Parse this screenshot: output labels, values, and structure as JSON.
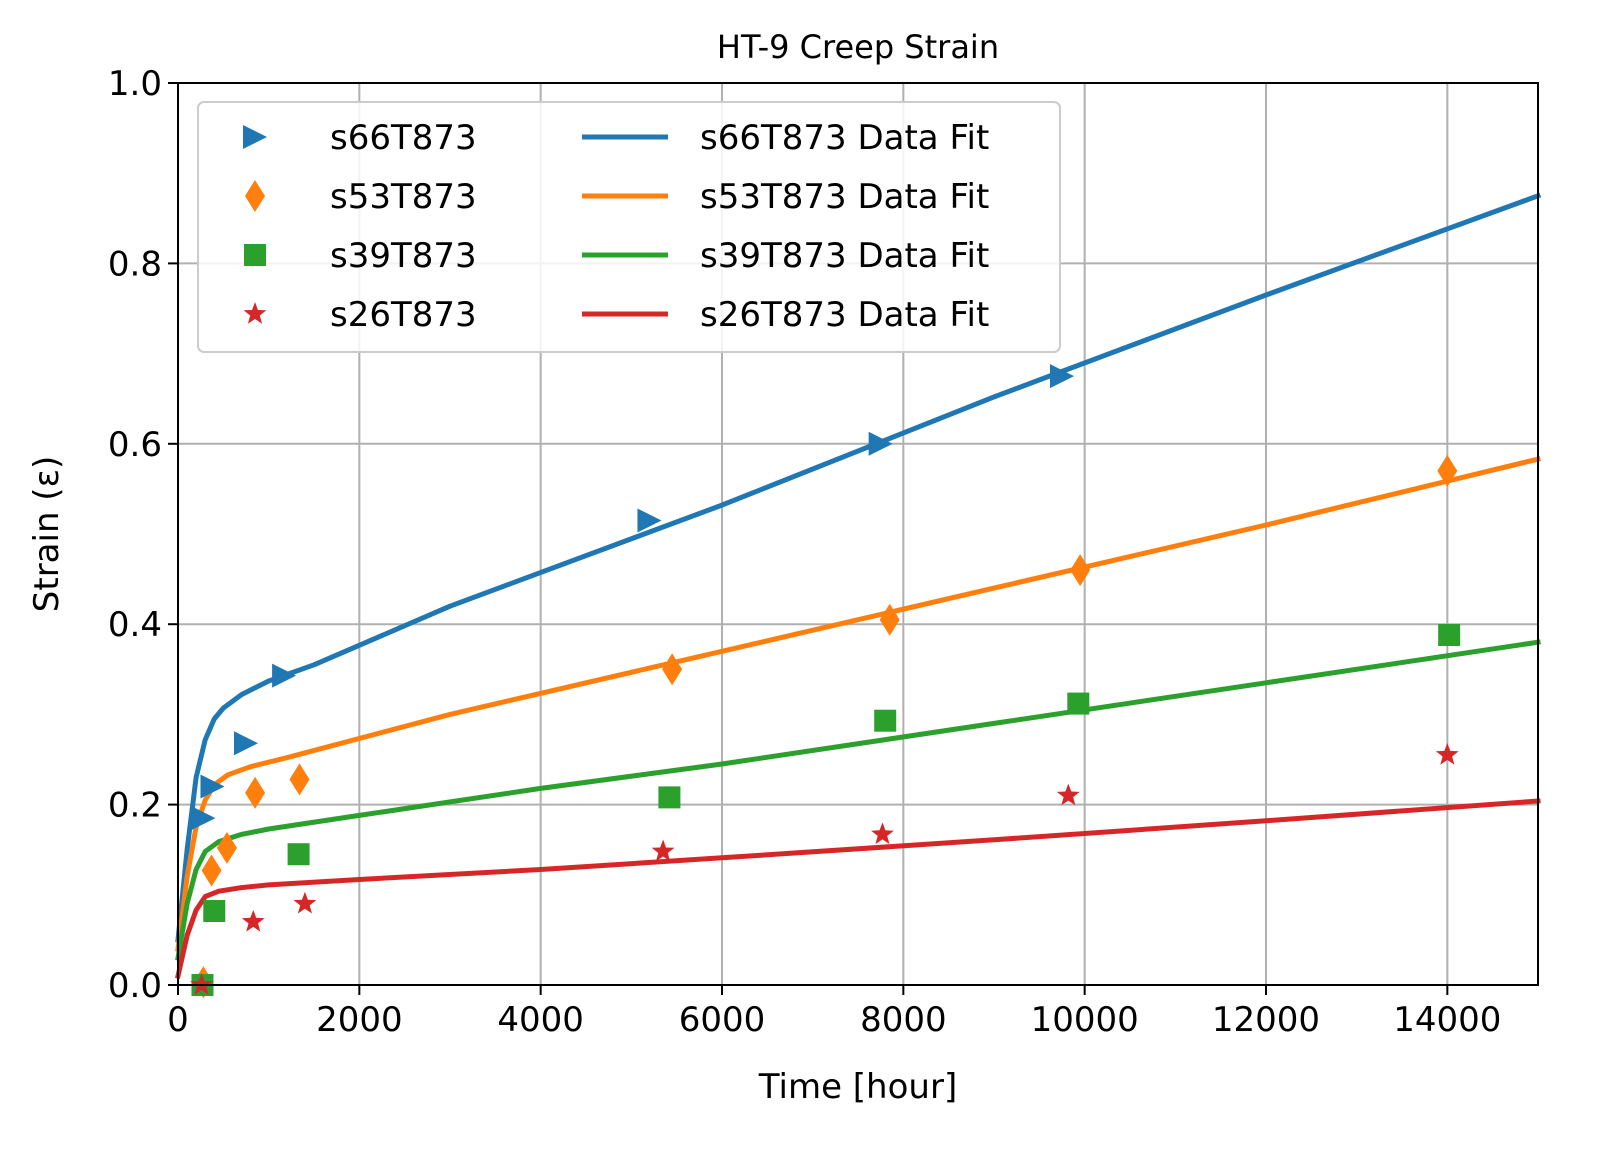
{
  "chart_data": {
    "type": "scatter",
    "title": "HT-9 Creep Strain",
    "xlabel": "Time [hour]",
    "ylabel": "Strain (ε)",
    "xlim": [
      0,
      15000
    ],
    "ylim": [
      0,
      1.0
    ],
    "x_ticks": [
      0,
      2000,
      4000,
      6000,
      8000,
      10000,
      12000,
      14000
    ],
    "y_ticks": [
      0.0,
      0.2,
      0.4,
      0.6,
      0.8,
      1.0
    ],
    "x_tick_labels": [
      "0",
      "2000",
      "4000",
      "6000",
      "8000",
      "10000",
      "12000",
      "14000"
    ],
    "y_tick_labels": [
      "0.0",
      "0.2",
      "0.4",
      "0.6",
      "0.8",
      "1.0"
    ],
    "grid": true,
    "legend_placement": "upper-left",
    "legend_columns": 2,
    "series": [
      {
        "name": "s66T873",
        "kind": "scatter",
        "marker": "triangle-right",
        "color": "#1f77b4",
        "points": [
          [
            280,
            0.185
          ],
          [
            380,
            0.22
          ],
          [
            750,
            0.268
          ],
          [
            1170,
            0.343
          ],
          [
            5200,
            0.515
          ],
          [
            7750,
            0.6
          ],
          [
            9750,
            0.675
          ]
        ]
      },
      {
        "name": "s53T873",
        "kind": "scatter",
        "marker": "thin-diamond",
        "color": "#ff7f0e",
        "points": [
          [
            280,
            0.003
          ],
          [
            370,
            0.127
          ],
          [
            540,
            0.152
          ],
          [
            850,
            0.213
          ],
          [
            1340,
            0.228
          ],
          [
            5450,
            0.35
          ],
          [
            7850,
            0.405
          ],
          [
            9950,
            0.46
          ],
          [
            14000,
            0.57
          ]
        ]
      },
      {
        "name": "s39T873",
        "kind": "scatter",
        "marker": "square",
        "color": "#2ca02c",
        "points": [
          [
            270,
            0.0
          ],
          [
            400,
            0.082
          ],
          [
            1330,
            0.145
          ],
          [
            5420,
            0.208
          ],
          [
            7800,
            0.293
          ],
          [
            9930,
            0.312
          ],
          [
            14020,
            0.388
          ]
        ]
      },
      {
        "name": "s26T873",
        "kind": "scatter",
        "marker": "star",
        "color": "#d62728",
        "points": [
          [
            260,
            0.0
          ],
          [
            830,
            0.07
          ],
          [
            1400,
            0.09
          ],
          [
            5350,
            0.148
          ],
          [
            7770,
            0.167
          ],
          [
            9820,
            0.21
          ],
          [
            14000,
            0.255
          ]
        ]
      },
      {
        "name": "s66T873 Data Fit",
        "kind": "line",
        "color": "#1f77b4",
        "points": [
          [
            0,
            0.05
          ],
          [
            100,
            0.15
          ],
          [
            200,
            0.23
          ],
          [
            300,
            0.272
          ],
          [
            400,
            0.295
          ],
          [
            500,
            0.307
          ],
          [
            700,
            0.322
          ],
          [
            1000,
            0.337
          ],
          [
            1500,
            0.355
          ],
          [
            3000,
            0.42
          ],
          [
            6000,
            0.532
          ],
          [
            9000,
            0.652
          ],
          [
            12000,
            0.765
          ],
          [
            15000,
            0.875
          ]
        ]
      },
      {
        "name": "s53T873 Data Fit",
        "kind": "line",
        "color": "#ff7f0e",
        "points": [
          [
            0,
            0.04
          ],
          [
            100,
            0.12
          ],
          [
            200,
            0.175
          ],
          [
            300,
            0.205
          ],
          [
            400,
            0.222
          ],
          [
            550,
            0.233
          ],
          [
            800,
            0.242
          ],
          [
            1200,
            0.252
          ],
          [
            3000,
            0.3
          ],
          [
            6000,
            0.37
          ],
          [
            9000,
            0.44
          ],
          [
            12000,
            0.51
          ],
          [
            15000,
            0.583
          ]
        ]
      },
      {
        "name": "s39T873 Data Fit",
        "kind": "line",
        "color": "#2ca02c",
        "points": [
          [
            0,
            0.03
          ],
          [
            100,
            0.09
          ],
          [
            200,
            0.128
          ],
          [
            300,
            0.148
          ],
          [
            450,
            0.159
          ],
          [
            700,
            0.167
          ],
          [
            1000,
            0.173
          ],
          [
            2000,
            0.188
          ],
          [
            4000,
            0.218
          ],
          [
            6000,
            0.245
          ],
          [
            9000,
            0.29
          ],
          [
            12000,
            0.335
          ],
          [
            15000,
            0.38
          ]
        ]
      },
      {
        "name": "s26T873 Data Fit",
        "kind": "line",
        "color": "#d62728",
        "points": [
          [
            0,
            0.01
          ],
          [
            100,
            0.055
          ],
          [
            200,
            0.083
          ],
          [
            300,
            0.098
          ],
          [
            450,
            0.104
          ],
          [
            700,
            0.108
          ],
          [
            1000,
            0.111
          ],
          [
            2000,
            0.117
          ],
          [
            4000,
            0.128
          ],
          [
            6000,
            0.141
          ],
          [
            9000,
            0.161
          ],
          [
            12000,
            0.182
          ],
          [
            15000,
            0.204
          ]
        ]
      }
    ]
  }
}
